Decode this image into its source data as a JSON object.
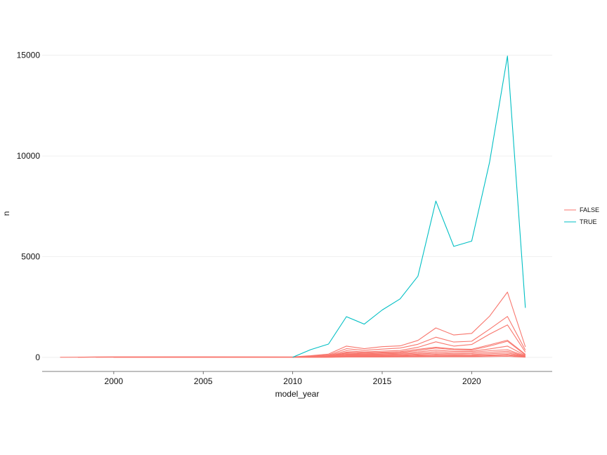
{
  "chart_data": {
    "type": "line",
    "title": "",
    "xlabel": "model_year",
    "ylabel": "n",
    "xlim": [
      1996,
      2024.5
    ],
    "ylim": [
      -700,
      16000
    ],
    "xticks": [
      2000,
      2005,
      2010,
      2015,
      2020
    ],
    "yticks": [
      0,
      5000,
      10000,
      15000
    ],
    "grid": "horizontal major",
    "legend_position": "right",
    "legend": [
      {
        "label": "FALSE",
        "color": "#F8766D"
      },
      {
        "label": "TRUE",
        "color": "#00BFC4"
      }
    ],
    "series": [
      {
        "group": "TRUE",
        "color": "#00BFC4",
        "x": [
          2010,
          2011,
          2012,
          2013,
          2014,
          2015,
          2016,
          2017,
          2018,
          2019,
          2020,
          2021,
          2022,
          2023
        ],
        "y": [
          5,
          380,
          660,
          2020,
          1650,
          2350,
          2900,
          4030,
          7760,
          5510,
          5770,
          9680,
          14960,
          2460
        ]
      },
      {
        "group": "FALSE",
        "color": "#F8766D",
        "x": [
          1997,
          1998,
          1999,
          2000,
          2005,
          2010,
          2011,
          2012,
          2013,
          2014,
          2015,
          2016,
          2017,
          2018,
          2019,
          2020,
          2021,
          2022,
          2023
        ],
        "y": [
          5,
          8,
          20,
          25,
          25,
          20,
          80,
          160,
          560,
          430,
          530,
          570,
          840,
          1460,
          1110,
          1190,
          2040,
          3240,
          520
        ]
      },
      {
        "group": "FALSE",
        "color": "#F8766D",
        "x": [
          1998,
          2000,
          2005,
          2010,
          2011,
          2012,
          2013,
          2014,
          2015,
          2016,
          2017,
          2018,
          2019,
          2020,
          2021,
          2022,
          2023
        ],
        "y": [
          5,
          15,
          18,
          15,
          60,
          120,
          430,
          350,
          410,
          460,
          650,
          1000,
          760,
          800,
          1400,
          2030,
          360
        ]
      },
      {
        "group": "FALSE",
        "color": "#F8766D",
        "x": [
          1999,
          2005,
          2010,
          2011,
          2012,
          2013,
          2014,
          2015,
          2016,
          2017,
          2018,
          2019,
          2020,
          2021,
          2022,
          2023
        ],
        "y": [
          10,
          12,
          10,
          40,
          90,
          330,
          270,
          310,
          340,
          500,
          770,
          560,
          640,
          1150,
          1610,
          260
        ]
      },
      {
        "group": "FALSE",
        "color": "#F8766D",
        "x": [
          1999,
          2005,
          2010,
          2011,
          2012,
          2013,
          2014,
          2015,
          2016,
          2017,
          2018,
          2019,
          2020,
          2021,
          2022,
          2023
        ],
        "y": [
          8,
          10,
          8,
          30,
          70,
          260,
          230,
          260,
          280,
          400,
          500,
          420,
          400,
          620,
          850,
          150
        ]
      },
      {
        "group": "FALSE",
        "color": "#F8766D",
        "x": [
          2000,
          2005,
          2010,
          2011,
          2012,
          2013,
          2014,
          2015,
          2016,
          2017,
          2018,
          2019,
          2020,
          2021,
          2022,
          2023
        ],
        "y": [
          6,
          8,
          6,
          25,
          60,
          220,
          200,
          220,
          240,
          340,
          460,
          380,
          360,
          560,
          800,
          120
        ]
      },
      {
        "group": "FALSE",
        "color": "#F8766D",
        "x": [
          2000,
          2005,
          2010,
          2011,
          2012,
          2013,
          2014,
          2015,
          2016,
          2017,
          2018,
          2019,
          2020,
          2021,
          2022,
          2023
        ],
        "y": [
          5,
          6,
          5,
          20,
          50,
          180,
          160,
          180,
          200,
          270,
          360,
          300,
          300,
          420,
          560,
          90
        ]
      },
      {
        "group": "FALSE",
        "color": "#F8766D",
        "x": [
          2000,
          2005,
          2010,
          2011,
          2012,
          2013,
          2014,
          2015,
          2016,
          2017,
          2018,
          2019,
          2020,
          2021,
          2022,
          2023
        ],
        "y": [
          4,
          5,
          4,
          15,
          40,
          140,
          130,
          140,
          160,
          210,
          280,
          240,
          250,
          330,
          380,
          70
        ]
      },
      {
        "group": "FALSE",
        "color": "#F8766D",
        "x": [
          2000,
          2005,
          2010,
          2011,
          2012,
          2013,
          2014,
          2015,
          2016,
          2017,
          2018,
          2019,
          2020,
          2021,
          2022,
          2023
        ],
        "y": [
          3,
          4,
          3,
          10,
          30,
          100,
          100,
          110,
          120,
          160,
          210,
          180,
          190,
          250,
          300,
          50
        ]
      },
      {
        "group": "FALSE",
        "color": "#F8766D",
        "x": [
          2000,
          2005,
          2010,
          2011,
          2012,
          2013,
          2014,
          2015,
          2016,
          2017,
          2018,
          2019,
          2020,
          2021,
          2022,
          2023
        ],
        "y": [
          2,
          3,
          2,
          8,
          20,
          70,
          70,
          80,
          90,
          120,
          150,
          130,
          140,
          180,
          220,
          40
        ]
      },
      {
        "group": "FALSE",
        "color": "#F8766D",
        "x": [
          2000,
          2005,
          2010,
          2011,
          2012,
          2013,
          2014,
          2015,
          2016,
          2017,
          2018,
          2019,
          2020,
          2021,
          2022,
          2023
        ],
        "y": [
          2,
          2,
          2,
          5,
          15,
          50,
          50,
          55,
          60,
          80,
          100,
          90,
          95,
          120,
          150,
          25
        ]
      },
      {
        "group": "FALSE",
        "color": "#F8766D",
        "x": [
          2000,
          2005,
          2010,
          2011,
          2012,
          2013,
          2014,
          2015,
          2016,
          2017,
          2018,
          2019,
          2020,
          2021,
          2022,
          2023
        ],
        "y": [
          1,
          1,
          1,
          3,
          8,
          30,
          30,
          35,
          40,
          50,
          60,
          55,
          60,
          80,
          100,
          15
        ]
      },
      {
        "group": "FALSE",
        "color": "#F8766D",
        "x": [
          2000,
          2005,
          2010,
          2011,
          2012,
          2013,
          2014,
          2015,
          2016,
          2017,
          2018,
          2019,
          2020,
          2021,
          2022,
          2023
        ],
        "y": [
          1,
          1,
          1,
          2,
          4,
          15,
          15,
          18,
          20,
          25,
          30,
          28,
          30,
          40,
          50,
          8
        ]
      }
    ]
  }
}
